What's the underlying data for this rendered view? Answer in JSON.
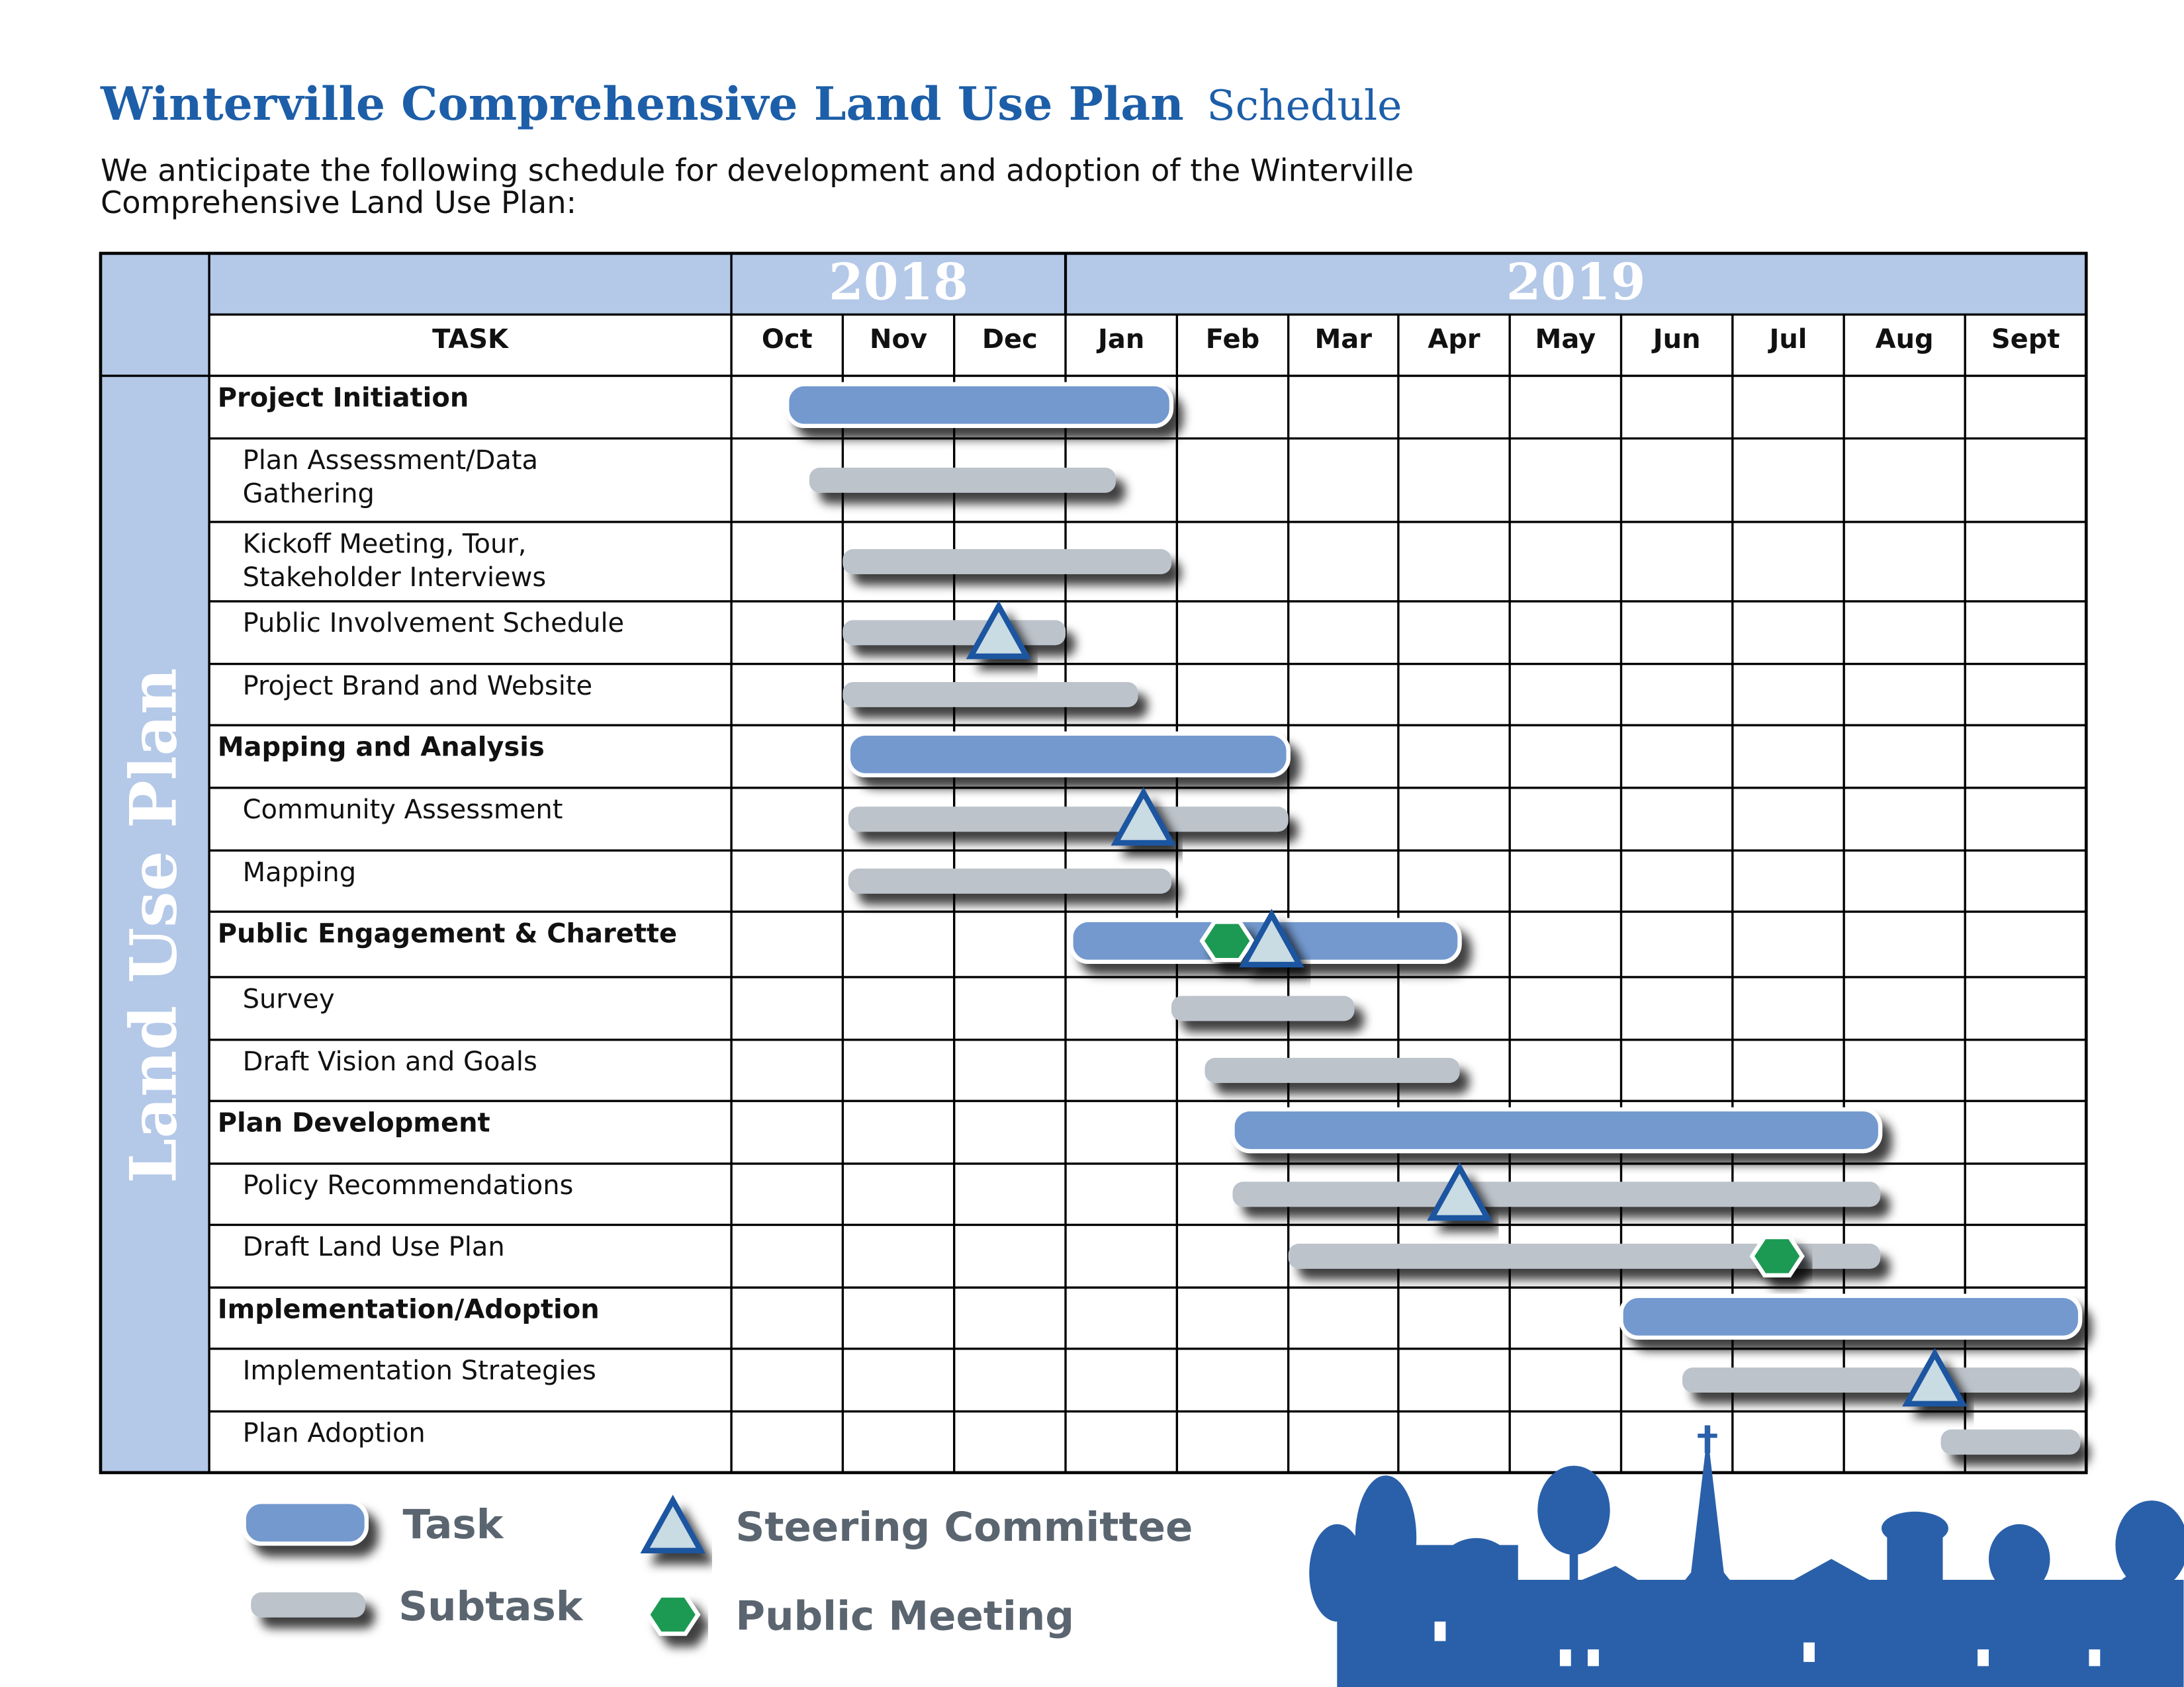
{
  "header": {
    "title": "Winterville Comprehensive Land Use Plan",
    "title_suffix": "Schedule",
    "intro": "We anticipate the following schedule for development and adoption of the Winterville\nComprehensive  Land Use Plan:"
  },
  "chart_data": {
    "type": "gantt",
    "side_label": "Land Use Plan",
    "task_header": "TASK",
    "xlim": [
      0,
      12
    ],
    "years": [
      {
        "label": "2018",
        "start": 0,
        "end": 3
      },
      {
        "label": "2019",
        "start": 3,
        "end": 12
      }
    ],
    "categories": [
      "Oct",
      "Nov",
      "Dec",
      "Jan",
      "Feb",
      "Mar",
      "Apr",
      "May",
      "Jun",
      "Jul",
      "Aug",
      "Sept"
    ],
    "colors": {
      "task": "#7399cf",
      "subtask": "#bcc3ca",
      "steering": "#c9dbe3",
      "steering_edge": "#1d55a0",
      "public": "#1f9a52",
      "frame": "#b4c8e8"
    },
    "tasks": [
      {
        "name": "Project Initiation",
        "level": "task",
        "start": 0.5,
        "end": 3.95,
        "milestones": []
      },
      {
        "name": "Plan Assessment/Data\nGathering",
        "level": "subtask",
        "start": 0.7,
        "end": 3.45,
        "milestones": []
      },
      {
        "name": "Kickoff Meeting, Tour,\nStakeholder Interviews",
        "level": "subtask",
        "start": 1.0,
        "end": 3.95,
        "milestones": []
      },
      {
        "name": "Public Involvement Schedule",
        "level": "subtask",
        "start": 1.0,
        "end": 3.0,
        "milestones": [
          {
            "kind": "steering",
            "x": 2.4
          }
        ]
      },
      {
        "name": "Project Brand and Website",
        "level": "subtask",
        "start": 1.0,
        "end": 3.65,
        "milestones": []
      },
      {
        "name": "Mapping and Analysis",
        "level": "task",
        "start": 1.05,
        "end": 5.0,
        "milestones": []
      },
      {
        "name": "Community Assessment",
        "level": "subtask",
        "start": 1.05,
        "end": 5.0,
        "milestones": [
          {
            "kind": "steering",
            "x": 3.7
          }
        ]
      },
      {
        "name": "Mapping",
        "level": "subtask",
        "start": 1.05,
        "end": 3.95,
        "milestones": []
      },
      {
        "name": "Public Engagement & Charette",
        "level": "task",
        "start": 3.05,
        "end": 6.55,
        "milestones": [
          {
            "kind": "public",
            "x": 4.45
          },
          {
            "kind": "steering",
            "x": 4.85
          }
        ]
      },
      {
        "name": "Survey",
        "level": "subtask",
        "start": 3.95,
        "end": 5.6,
        "milestones": []
      },
      {
        "name": "Draft Vision and Goals",
        "level": "subtask",
        "start": 4.25,
        "end": 6.55,
        "milestones": []
      },
      {
        "name": "Plan Development",
        "level": "task",
        "start": 4.5,
        "end": 10.3,
        "milestones": []
      },
      {
        "name": "Policy Recommendations",
        "level": "subtask",
        "start": 4.5,
        "end": 10.3,
        "milestones": [
          {
            "kind": "steering",
            "x": 6.55
          }
        ]
      },
      {
        "name": "Draft Land Use Plan",
        "level": "subtask",
        "start": 5.0,
        "end": 10.3,
        "milestones": [
          {
            "kind": "public",
            "x": 9.4
          }
        ]
      },
      {
        "name": "Implementation/Adoption",
        "level": "task",
        "start": 8.0,
        "end": 11.95,
        "milestones": []
      },
      {
        "name": "Implementation Strategies",
        "level": "subtask",
        "start": 8.55,
        "end": 11.95,
        "milestones": [
          {
            "kind": "steering",
            "x": 10.75
          }
        ]
      },
      {
        "name": "Plan Adoption",
        "level": "subtask",
        "start": 10.8,
        "end": 11.95,
        "milestones": []
      }
    ],
    "legend": {
      "task": "Task",
      "subtask": "Subtask",
      "steering": "Steering Committee",
      "public": "Public Meeting"
    }
  }
}
